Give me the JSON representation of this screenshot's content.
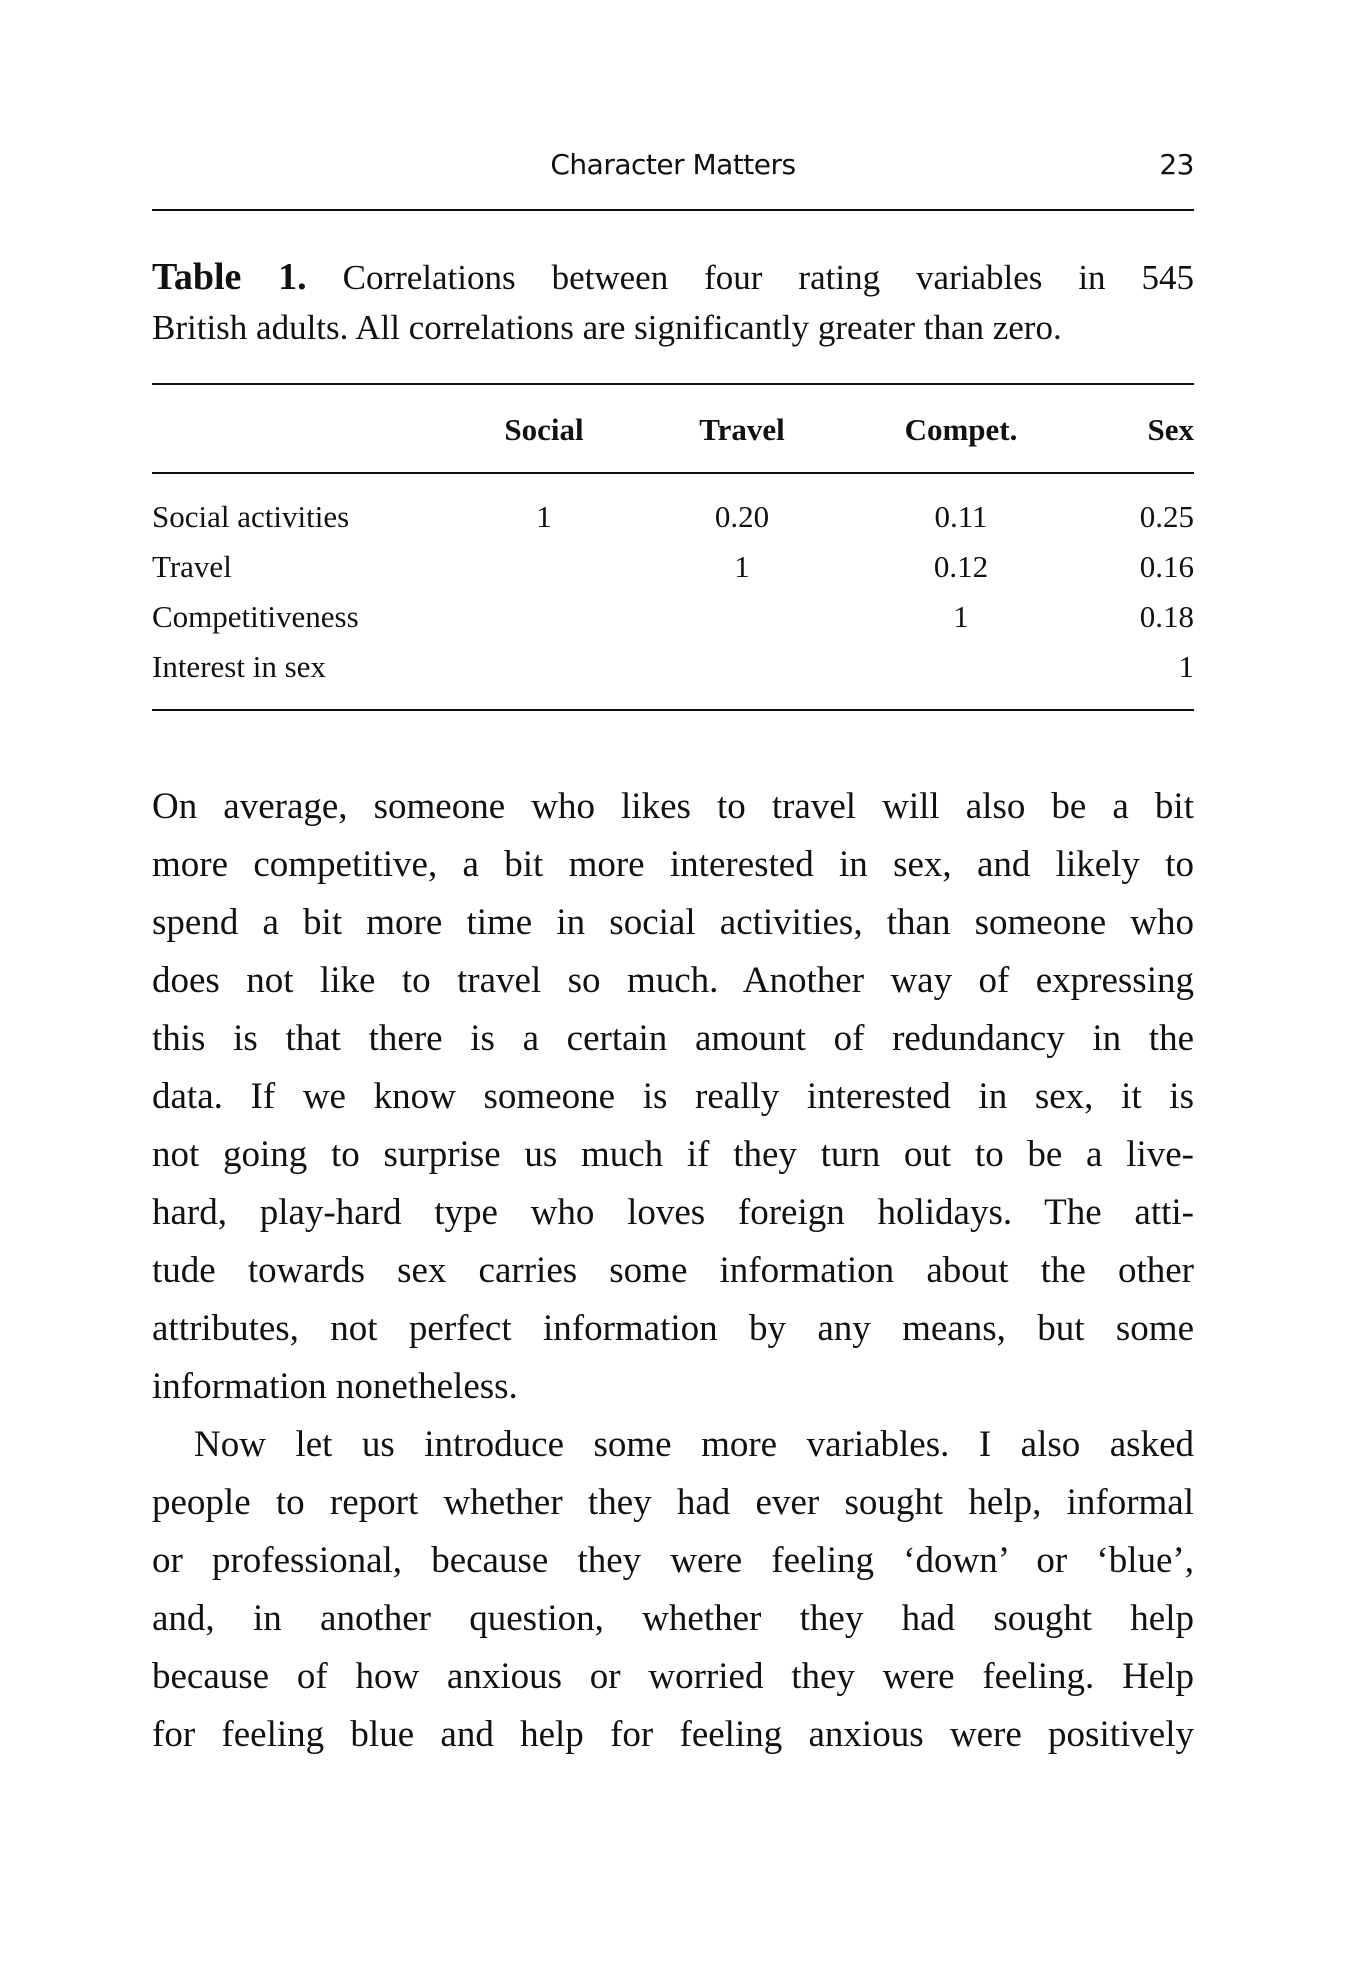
{
  "running_head": {
    "title": "Character Matters",
    "page_number": "23"
  },
  "caption": {
    "label": "Table 1.",
    "lines": [
      "Correlations between four rating variables in 545",
      "British adults. All correlations are significantly greater than zero."
    ]
  },
  "table": {
    "columns": [
      "Social",
      "Travel",
      "Compet.",
      "Sex"
    ],
    "rows": [
      {
        "label": "Social activities",
        "values": [
          "1",
          "0.20",
          "0.11",
          "0.25"
        ]
      },
      {
        "label": "Travel",
        "values": [
          "",
          "1",
          "0.12",
          "0.16"
        ]
      },
      {
        "label": "Competitiveness",
        "values": [
          "",
          "",
          "1",
          "0.18"
        ]
      },
      {
        "label": "Interest in sex",
        "values": [
          "",
          "",
          "",
          "1"
        ]
      }
    ]
  },
  "paragraphs": [
    {
      "lines": [
        "On average, someone who likes to travel will also be a bit",
        "more competitive, a bit more interested in sex, and likely to",
        "spend a bit more time in social activities, than someone who",
        "does not like to travel so much. Another way of expressing",
        "this is that there is a certain amount of redundancy in the",
        "data. If we know someone is really interested in sex, it is",
        "not going to surprise us much if they turn out to be a live-",
        "hard, play-hard type who loves foreign holidays. The atti-",
        "tude towards sex carries some information about the other",
        "attributes, not perfect information by any means, but some",
        "information nonetheless."
      ]
    },
    {
      "lines": [
        "Now let us introduce some more variables. I also asked",
        "people to report whether they had ever sought help, informal",
        "or professional, because they were feeling ‘down’ or ‘blue’,",
        "and, in another question, whether they had sought help",
        "because of how anxious or worried they were feeling. Help",
        "for feeling blue and help for feeling anxious were positively"
      ]
    }
  ]
}
